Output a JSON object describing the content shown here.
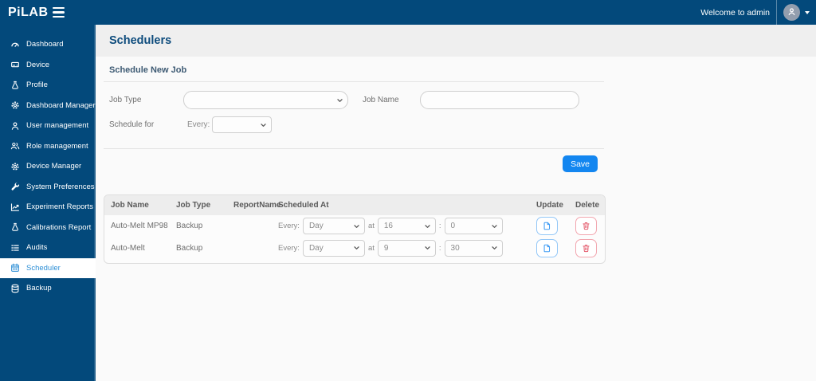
{
  "app": {
    "logo_text": "PiLAB"
  },
  "topbar": {
    "welcome_text": "Welcome to admin"
  },
  "sidebar": {
    "items": [
      {
        "label": "Dashboard",
        "icon": "gauge-icon",
        "active": false
      },
      {
        "label": "Device",
        "icon": "device-icon",
        "active": false
      },
      {
        "label": "Profile",
        "icon": "flask-icon",
        "active": false
      },
      {
        "label": "Dashboard Manager",
        "icon": "gear-icon",
        "active": false
      },
      {
        "label": "User management",
        "icon": "user-icon",
        "active": false
      },
      {
        "label": "Role management",
        "icon": "users-icon",
        "active": false
      },
      {
        "label": "Device Manager",
        "icon": "gear-icon",
        "active": false
      },
      {
        "label": "System Preferences",
        "icon": "wrench-icon",
        "active": false
      },
      {
        "label": "Experiment Reports",
        "icon": "chart-icon",
        "active": false
      },
      {
        "label": "Calibrations Report",
        "icon": "flask-icon",
        "active": false
      },
      {
        "label": "Audits",
        "icon": "list-icon",
        "active": false
      },
      {
        "label": "Scheduler",
        "icon": "calendar-icon",
        "active": true
      },
      {
        "label": "Backup",
        "icon": "database-icon",
        "active": false
      }
    ]
  },
  "page": {
    "title": "Schedulers",
    "section_title": "Schedule New Job"
  },
  "form": {
    "job_type_label": "Job Type",
    "job_type_value": "",
    "job_name_label": "Job Name",
    "job_name_value": "",
    "schedule_for_label": "Schedule for",
    "every_label": "Every:",
    "every_value": "",
    "save_label": "Save"
  },
  "table": {
    "headers": [
      "Job Name",
      "Job Type",
      "ReportName",
      "Scheduled At",
      "Update",
      "Delete"
    ],
    "every_label": "Every:",
    "at_label": "at",
    "colon_label": ":",
    "rows": [
      {
        "job_name": "Auto-Melt MP98",
        "job_type": "Backup",
        "report_name": "",
        "every": "Day",
        "hour": "16",
        "minute": "0"
      },
      {
        "job_name": "Auto-Melt",
        "job_type": "Backup",
        "report_name": "",
        "every": "Day",
        "hour": "9",
        "minute": "30"
      }
    ]
  },
  "colors": {
    "navy": "#03497B",
    "accent_blue": "#1386F0",
    "active_link_blue": "#2E8FD6",
    "danger_red": "#E4596B",
    "title_band_bg": "#EFEFEF",
    "content_bg": "#FAFAFA"
  }
}
